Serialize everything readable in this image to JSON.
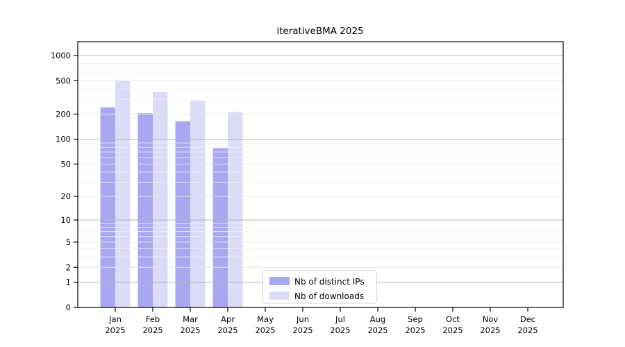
{
  "title": "iterativeBMA 2025",
  "chart_data": {
    "type": "bar",
    "title": "iterativeBMA 2025",
    "year_label": "2025",
    "categories": [
      "Jan",
      "Feb",
      "Mar",
      "Apr",
      "May",
      "Jun",
      "Jul",
      "Aug",
      "Sep",
      "Oct",
      "Nov",
      "Dec"
    ],
    "series": [
      {
        "name": "Nb of distinct IPs",
        "color": "#a8a8f2",
        "values": [
          240,
          205,
          164,
          78,
          null,
          null,
          null,
          null,
          null,
          null,
          null,
          null
        ]
      },
      {
        "name": "Nb of downloads",
        "color": "#dcdcf8",
        "values": [
          500,
          365,
          290,
          212,
          null,
          null,
          null,
          null,
          null,
          null,
          null,
          null
        ]
      }
    ],
    "y_axis": {
      "scale": "log10(value+1)",
      "ticks": [
        0,
        1,
        2,
        5,
        10,
        20,
        50,
        100,
        200,
        500,
        1000
      ],
      "range_top": 1480
    },
    "x_axis": {
      "tick_label_line1": [
        "Jan",
        "Feb",
        "Mar",
        "Apr",
        "May",
        "Jun",
        "Jul",
        "Aug",
        "Sep",
        "Oct",
        "Nov",
        "Dec"
      ],
      "tick_label_line2": "2025"
    },
    "grid": true,
    "legend_position": "bottom-center-inside",
    "colors": {
      "grid_minor": "#f2f2f2",
      "grid_major": "#e4e4e4",
      "grid_pow10": "#b4b4b4",
      "axis": "#000000",
      "legend_border": "#d3d3d3",
      "background": "#ffffff"
    }
  }
}
